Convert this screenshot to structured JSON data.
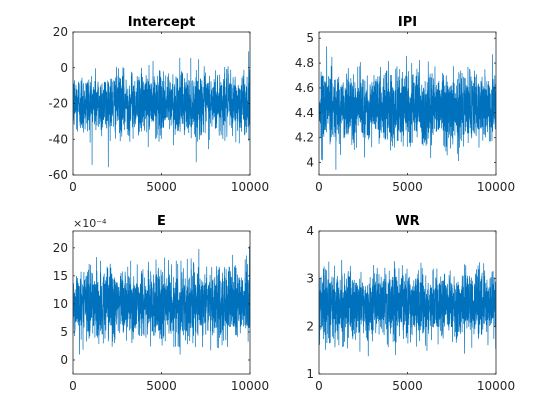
{
  "chart_data": [
    {
      "type": "line",
      "title": "Intercept",
      "xlabel": "",
      "ylabel": "",
      "xlim": [
        0,
        10000
      ],
      "ylim": [
        -60,
        20
      ],
      "xticks": [
        "0",
        "5000",
        "10000"
      ],
      "yticks": [
        "-60",
        "-40",
        "-20",
        "0",
        "20"
      ],
      "exponent_label": "",
      "grid": false,
      "series": [
        {
          "mean": -20,
          "sd": 8.5,
          "min": -57,
          "max": 15,
          "n": 10000,
          "color": "#0072bd"
        }
      ]
    },
    {
      "type": "line",
      "title": "IPI",
      "xlabel": "",
      "ylabel": "",
      "xlim": [
        0,
        10000
      ],
      "ylim": [
        3.9,
        5.05
      ],
      "xticks": [
        "0",
        "5000",
        "10000"
      ],
      "yticks": [
        "4",
        "4.2",
        "4.4",
        "4.6",
        "4.8",
        "5"
      ],
      "exponent_label": "",
      "grid": false,
      "series": [
        {
          "mean": 4.45,
          "sd": 0.14,
          "min": 3.92,
          "max": 5.05,
          "n": 10000,
          "color": "#0072bd"
        }
      ]
    },
    {
      "type": "line",
      "title": "E",
      "xlabel": "",
      "ylabel": "",
      "xlim": [
        0,
        10000
      ],
      "ylim": [
        -2.5,
        23
      ],
      "xticks": [
        "0",
        "5000",
        "10000"
      ],
      "yticks": [
        "0",
        "5",
        "10",
        "15",
        "20"
      ],
      "exponent_label": "×10⁻⁴",
      "grid": false,
      "series": [
        {
          "mean": 10,
          "sd": 3.2,
          "min": -1,
          "max": 23,
          "n": 10000,
          "color": "#0072bd"
        }
      ]
    },
    {
      "type": "line",
      "title": "WR",
      "xlabel": "",
      "ylabel": "",
      "xlim": [
        0,
        10000
      ],
      "ylim": [
        1,
        4
      ],
      "xticks": [
        "0",
        "5000",
        "10000"
      ],
      "yticks": [
        "1",
        "2",
        "3",
        "4"
      ],
      "exponent_label": "",
      "grid": false,
      "series": [
        {
          "mean": 2.45,
          "sd": 0.35,
          "min": 1.2,
          "max": 3.75,
          "n": 10000,
          "color": "#0072bd"
        }
      ]
    }
  ]
}
